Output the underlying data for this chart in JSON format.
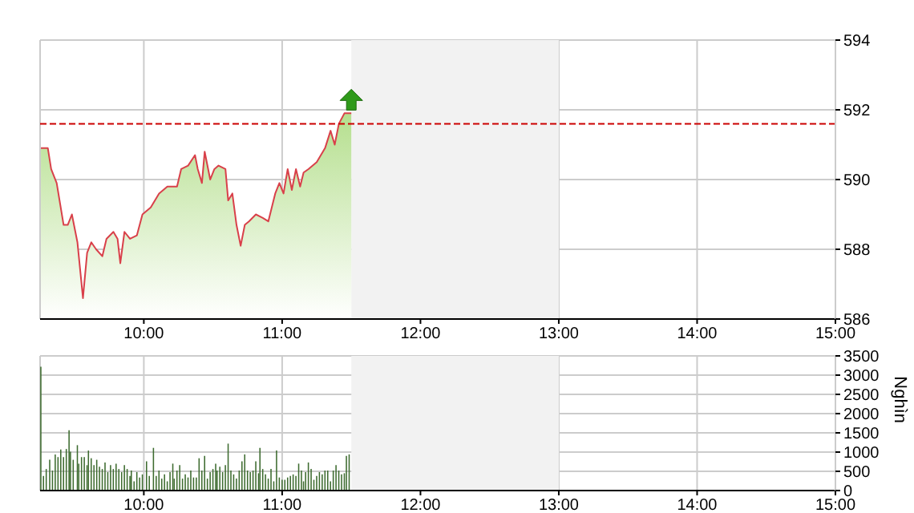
{
  "chart_data": [
    {
      "type": "area",
      "color": "#d9404a",
      "x": [
        9.256,
        9.306,
        9.33,
        9.37,
        9.42,
        9.45,
        9.48,
        9.52,
        9.56,
        9.59,
        9.62,
        9.655,
        9.7,
        9.73,
        9.78,
        9.81,
        9.83,
        9.86,
        9.9,
        9.95,
        9.99,
        10.05,
        10.11,
        10.17,
        10.24,
        10.27,
        10.32,
        10.37,
        10.39,
        10.42,
        10.44,
        10.48,
        10.51,
        10.54,
        10.59,
        10.61,
        10.64,
        10.67,
        10.7,
        10.73,
        10.76,
        10.81,
        10.86,
        10.9,
        10.95,
        10.98,
        11.01,
        11.04,
        11.07,
        11.1,
        11.13,
        11.155,
        11.19,
        11.25,
        11.31,
        11.35,
        11.38,
        11.41,
        11.45,
        11.5
      ],
      "values": [
        590.9,
        590.9,
        590.3,
        589.9,
        588.7,
        588.7,
        589.0,
        588.2,
        586.6,
        587.9,
        588.2,
        588.0,
        587.8,
        588.3,
        588.5,
        588.3,
        587.6,
        588.5,
        588.3,
        588.4,
        589.0,
        589.2,
        589.6,
        589.8,
        589.8,
        590.3,
        590.4,
        590.7,
        590.3,
        589.9,
        590.8,
        590.0,
        590.3,
        590.4,
        590.3,
        589.4,
        589.6,
        588.7,
        588.1,
        588.7,
        588.8,
        589.0,
        588.9,
        588.8,
        589.6,
        589.9,
        589.6,
        590.3,
        589.7,
        590.3,
        589.8,
        590.2,
        590.3,
        590.5,
        590.9,
        591.4,
        591.0,
        591.6,
        591.9,
        591.9
      ],
      "xlim": [
        9.25,
        15
      ],
      "xticks": [
        {
          "value": 10,
          "label": "10:00"
        },
        {
          "value": 11,
          "label": "11:00"
        },
        {
          "value": 12,
          "label": "12:00"
        },
        {
          "value": 13,
          "label": "13:00"
        },
        {
          "value": 14,
          "label": "14:00"
        },
        {
          "value": 15,
          "label": "15:00"
        }
      ],
      "ylim": [
        586,
        594
      ],
      "yticks": [
        586,
        588,
        590,
        592,
        594
      ],
      "grid": true,
      "ref_lines": [
        {
          "axis": "y",
          "value": 591.6,
          "color": "#cc0000",
          "line_style": "dashed"
        }
      ],
      "bands": [
        {
          "axis": "x",
          "from": 11.5,
          "to": 13,
          "color": "#f2f2f2"
        }
      ]
    },
    {
      "type": "bar",
      "color": "#3d6b2f",
      "ylabel": "Nghìn",
      "x": [
        9.256,
        9.275,
        9.295,
        9.32,
        9.34,
        9.36,
        9.38,
        9.4,
        9.42,
        9.44,
        9.46,
        9.47,
        9.49,
        9.52,
        9.53,
        9.55,
        9.57,
        9.59,
        9.6,
        9.62,
        9.64,
        9.66,
        9.68,
        9.7,
        9.72,
        9.74,
        9.76,
        9.78,
        9.8,
        9.82,
        9.84,
        9.86,
        9.88,
        9.9,
        9.91,
        9.93,
        9.95,
        9.97,
        9.99,
        10.02,
        10.04,
        10.07,
        10.09,
        10.11,
        10.13,
        10.15,
        10.17,
        10.19,
        10.21,
        10.22,
        10.24,
        10.26,
        10.28,
        10.3,
        10.32,
        10.34,
        10.36,
        10.38,
        10.4,
        10.42,
        10.44,
        10.46,
        10.48,
        10.5,
        10.52,
        10.53,
        10.55,
        10.57,
        10.59,
        10.61,
        10.63,
        10.65,
        10.67,
        10.69,
        10.71,
        10.73,
        10.75,
        10.77,
        10.79,
        10.81,
        10.83,
        10.84,
        10.86,
        10.88,
        10.9,
        10.92,
        10.94,
        10.96,
        10.98,
        11.0,
        11.02,
        11.04,
        11.06,
        11.08,
        11.1,
        11.12,
        11.14,
        11.155,
        11.17,
        11.19,
        11.21,
        11.23,
        11.25,
        11.27,
        11.29,
        11.31,
        11.33,
        11.35,
        11.37,
        11.39,
        11.41,
        11.43,
        11.45,
        11.465,
        11.485
      ],
      "values": [
        3220,
        380,
        560,
        800,
        520,
        940,
        870,
        1070,
        870,
        1080,
        1570,
        1010,
        800,
        1180,
        700,
        870,
        870,
        660,
        1040,
        840,
        660,
        800,
        620,
        560,
        730,
        480,
        660,
        560,
        700,
        560,
        480,
        660,
        560,
        380,
        520,
        240,
        480,
        340,
        420,
        760,
        380,
        1110,
        380,
        520,
        310,
        420,
        240,
        480,
        700,
        310,
        520,
        660,
        310,
        420,
        340,
        520,
        340,
        340,
        840,
        520,
        900,
        310,
        480,
        560,
        700,
        520,
        620,
        480,
        660,
        1220,
        520,
        420,
        310,
        520,
        760,
        940,
        520,
        480,
        520,
        760,
        450,
        1110,
        560,
        420,
        310,
        560,
        240,
        1040,
        340,
        280,
        280,
        340,
        380,
        420,
        380,
        700,
        520,
        240,
        480,
        730,
        560,
        280,
        380,
        480,
        420,
        520,
        520,
        240,
        520,
        660,
        520,
        420,
        450,
        900,
        940
      ],
      "xlim": [
        9.25,
        15
      ],
      "xticks": [
        {
          "value": 10,
          "label": "10:00"
        },
        {
          "value": 11,
          "label": "11:00"
        },
        {
          "value": 12,
          "label": "12:00"
        },
        {
          "value": 13,
          "label": "13:00"
        },
        {
          "value": 14,
          "label": "14:00"
        },
        {
          "value": 15,
          "label": "15:00"
        }
      ],
      "ylim": [
        0,
        3500
      ],
      "yticks": [
        0,
        500,
        1000,
        1500,
        2000,
        2500,
        3000,
        3500
      ],
      "grid": true,
      "bands": [
        {
          "axis": "x",
          "from": 11.5,
          "to": 13,
          "color": "#f2f2f2"
        }
      ]
    }
  ]
}
